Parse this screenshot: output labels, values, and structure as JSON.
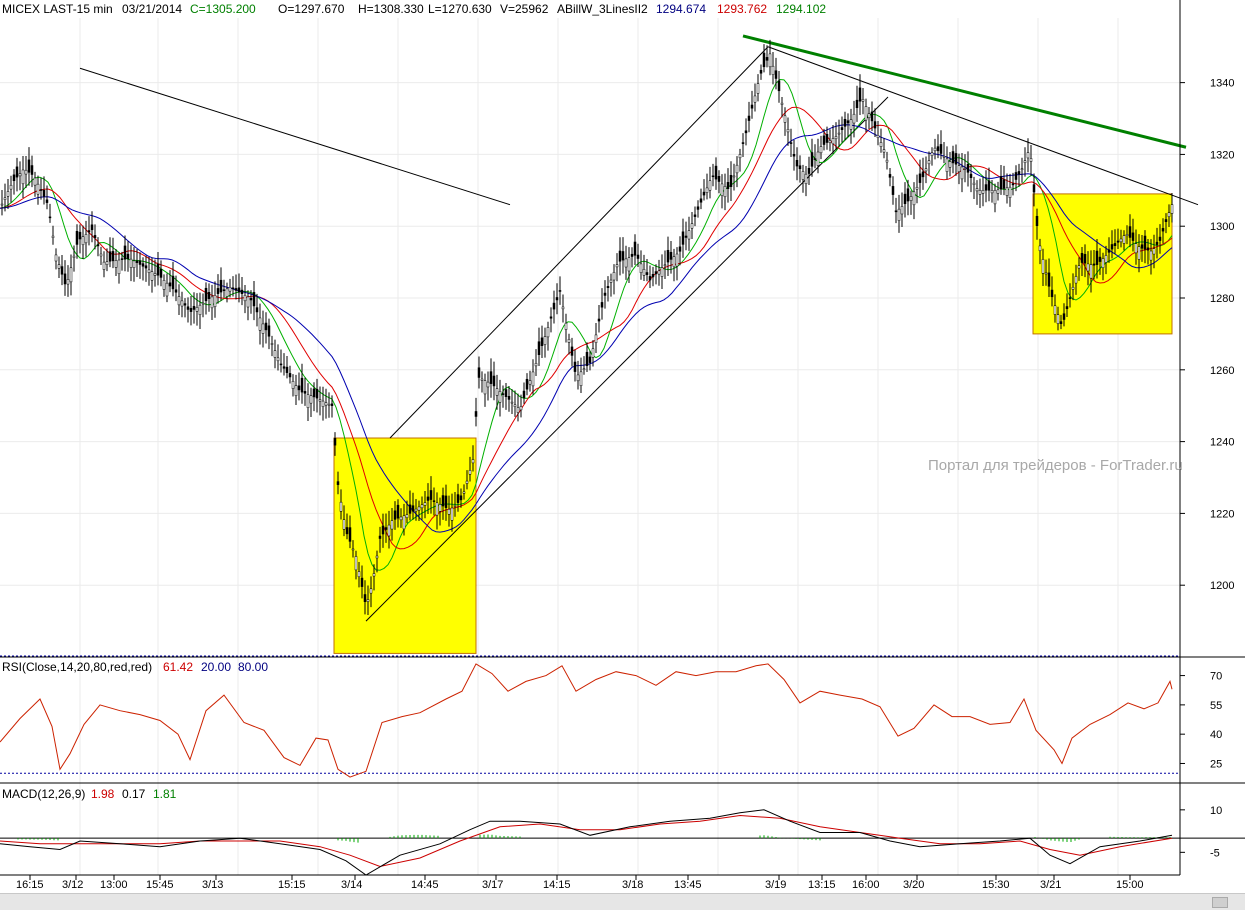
{
  "header": {
    "symbol": "MICEX LAST-15 min",
    "date": "03/21/2014",
    "close": "C=1305.200",
    "open": "O=1297.670",
    "high": "H=1308.330",
    "low": "L=1270.630",
    "volume": "V=25962",
    "indicator": "ABillW_3LinesII2",
    "ind_blue": "1294.674",
    "ind_red": "1293.762",
    "ind_green": "1294.102"
  },
  "watermark": "Портал для трейдеров - ForTrader.ru",
  "rsi_header": {
    "label": "RSI(Close,14,20,80,red,red)",
    "value": "61.42",
    "low": "20.00",
    "high": "80.00"
  },
  "macd_header": {
    "label": "MACD(12,26,9)",
    "macd": "1.98",
    "signal": "0.17",
    "hist": "1.81"
  },
  "colors": {
    "fast_ma": "#00b000",
    "mid_ma": "#e00000",
    "slow_ma": "#0000b0",
    "highlight": "#ffff00",
    "trend_green": "#008000",
    "rsi_line": "#cc2200",
    "macd_signal": "#cc0000",
    "macd_hist": "#00aa00"
  },
  "chart_data": [
    {
      "type": "candlestick",
      "title": "MICEX LAST-15 min",
      "y_ticks": [
        1200,
        1220,
        1240,
        1260,
        1280,
        1300,
        1320,
        1340
      ],
      "ylim": [
        1180,
        1358
      ],
      "x_ticks": [
        "16:15",
        "3/12",
        "13:00",
        "15:45",
        "3/13",
        "15:15",
        "3/14",
        "14:45",
        "3/17",
        "14:15",
        "3/18",
        "13:45",
        "3/19",
        "13:15",
        "16:00",
        "3/20",
        "15:30",
        "3/21",
        "15:00"
      ],
      "price_path": [
        [
          0,
          1305
        ],
        [
          12,
          1312
        ],
        [
          24,
          1316
        ],
        [
          34,
          1314
        ],
        [
          48,
          1306
        ],
        [
          56,
          1292
        ],
        [
          66,
          1283
        ],
        [
          78,
          1296
        ],
        [
          92,
          1299
        ],
        [
          104,
          1290
        ],
        [
          130,
          1291
        ],
        [
          160,
          1286
        ],
        [
          175,
          1282
        ],
        [
          190,
          1276
        ],
        [
          210,
          1280
        ],
        [
          230,
          1283
        ],
        [
          250,
          1280
        ],
        [
          268,
          1270
        ],
        [
          280,
          1262
        ],
        [
          300,
          1254
        ],
        [
          318,
          1252
        ],
        [
          332,
          1250
        ],
        [
          338,
          1228
        ],
        [
          346,
          1215
        ],
        [
          356,
          1208
        ],
        [
          366,
          1194
        ],
        [
          372,
          1200
        ],
        [
          380,
          1213
        ],
        [
          392,
          1218
        ],
        [
          410,
          1220
        ],
        [
          430,
          1224
        ],
        [
          450,
          1221
        ],
        [
          462,
          1224
        ],
        [
          474,
          1236
        ],
        [
          478,
          1258
        ],
        [
          492,
          1256
        ],
        [
          508,
          1252
        ],
        [
          520,
          1249
        ],
        [
          540,
          1265
        ],
        [
          560,
          1282
        ],
        [
          576,
          1258
        ],
        [
          590,
          1262
        ],
        [
          604,
          1280
        ],
        [
          618,
          1290
        ],
        [
          636,
          1292
        ],
        [
          650,
          1285
        ],
        [
          664,
          1289
        ],
        [
          680,
          1293
        ],
        [
          694,
          1302
        ],
        [
          712,
          1314
        ],
        [
          730,
          1310
        ],
        [
          746,
          1326
        ],
        [
          760,
          1342
        ],
        [
          770,
          1348
        ],
        [
          784,
          1332
        ],
        [
          796,
          1317
        ],
        [
          808,
          1314
        ],
        [
          820,
          1322
        ],
        [
          836,
          1325
        ],
        [
          852,
          1330
        ],
        [
          862,
          1336
        ],
        [
          874,
          1328
        ],
        [
          886,
          1320
        ],
        [
          896,
          1304
        ],
        [
          908,
          1307
        ],
        [
          922,
          1313
        ],
        [
          934,
          1322
        ],
        [
          950,
          1318
        ],
        [
          966,
          1316
        ],
        [
          978,
          1310
        ],
        [
          996,
          1310
        ],
        [
          1012,
          1311
        ],
        [
          1022,
          1316
        ],
        [
          1030,
          1322
        ],
        [
          1038,
          1297
        ],
        [
          1050,
          1282
        ],
        [
          1062,
          1272
        ],
        [
          1068,
          1278
        ],
        [
          1080,
          1290
        ],
        [
          1096,
          1289
        ],
        [
          1110,
          1293
        ],
        [
          1126,
          1298
        ],
        [
          1140,
          1294
        ],
        [
          1152,
          1293
        ],
        [
          1160,
          1296
        ],
        [
          1168,
          1303
        ],
        [
          1172,
          1306
        ]
      ],
      "moving_averages": [
        "green",
        "red",
        "blue"
      ],
      "highlight_boxes": [
        {
          "x_from": "3/14",
          "y_range": [
            1181,
            1241
          ]
        },
        {
          "x_from": "3/21",
          "y_range": [
            1270,
            1309
          ]
        }
      ]
    },
    {
      "type": "line",
      "title": "RSI(Close,14,20,80,red,red)",
      "y_ticks": [
        25,
        40,
        55,
        70
      ],
      "ylim": [
        15,
        79
      ],
      "guides": [
        20,
        80
      ],
      "values": [
        [
          0,
          36
        ],
        [
          20,
          48
        ],
        [
          40,
          58
        ],
        [
          52,
          44
        ],
        [
          60,
          22
        ],
        [
          70,
          30
        ],
        [
          84,
          45
        ],
        [
          100,
          55
        ],
        [
          120,
          52
        ],
        [
          140,
          50
        ],
        [
          160,
          47
        ],
        [
          178,
          40
        ],
        [
          190,
          27
        ],
        [
          206,
          52
        ],
        [
          224,
          60
        ],
        [
          244,
          46
        ],
        [
          264,
          42
        ],
        [
          284,
          28
        ],
        [
          300,
          24
        ],
        [
          316,
          38
        ],
        [
          328,
          37
        ],
        [
          338,
          22
        ],
        [
          350,
          18
        ],
        [
          366,
          21
        ],
        [
          382,
          46
        ],
        [
          402,
          49
        ],
        [
          420,
          51
        ],
        [
          446,
          58
        ],
        [
          462,
          62
        ],
        [
          476,
          76
        ],
        [
          492,
          71
        ],
        [
          508,
          62
        ],
        [
          526,
          67
        ],
        [
          546,
          70
        ],
        [
          562,
          75
        ],
        [
          576,
          62
        ],
        [
          596,
          68
        ],
        [
          616,
          72
        ],
        [
          636,
          70
        ],
        [
          656,
          65
        ],
        [
          676,
          72
        ],
        [
          696,
          70
        ],
        [
          716,
          72
        ],
        [
          736,
          72
        ],
        [
          756,
          75
        ],
        [
          768,
          76
        ],
        [
          784,
          68
        ],
        [
          800,
          56
        ],
        [
          820,
          62
        ],
        [
          840,
          60
        ],
        [
          862,
          58
        ],
        [
          880,
          54
        ],
        [
          898,
          39
        ],
        [
          914,
          43
        ],
        [
          934,
          55
        ],
        [
          952,
          49
        ],
        [
          970,
          49
        ],
        [
          990,
          45
        ],
        [
          1010,
          46
        ],
        [
          1024,
          58
        ],
        [
          1036,
          42
        ],
        [
          1054,
          32
        ],
        [
          1062,
          25
        ],
        [
          1072,
          38
        ],
        [
          1090,
          45
        ],
        [
          1110,
          50
        ],
        [
          1128,
          56
        ],
        [
          1144,
          53
        ],
        [
          1158,
          56
        ],
        [
          1170,
          67
        ],
        [
          1172,
          63
        ]
      ]
    },
    {
      "type": "line",
      "title": "MACD(12,26,9)",
      "y_ticks": [
        -5,
        10
      ],
      "ylim": [
        -13,
        17
      ],
      "zero_line": 0,
      "series": [
        {
          "name": "MACD",
          "values": [
            [
              0,
              -2
            ],
            [
              30,
              -3
            ],
            [
              60,
              -4
            ],
            [
              80,
              -1
            ],
            [
              120,
              -2
            ],
            [
              160,
              -3
            ],
            [
              200,
              -1
            ],
            [
              240,
              0
            ],
            [
              280,
              -2
            ],
            [
              320,
              -4
            ],
            [
              346,
              -8
            ],
            [
              366,
              -13
            ],
            [
              400,
              -6
            ],
            [
              440,
              -2
            ],
            [
              470,
              3
            ],
            [
              490,
              6
            ],
            [
              520,
              6
            ],
            [
              560,
              5
            ],
            [
              590,
              1
            ],
            [
              630,
              4
            ],
            [
              670,
              6
            ],
            [
              710,
              7
            ],
            [
              740,
              9
            ],
            [
              764,
              10
            ],
            [
              790,
              6
            ],
            [
              820,
              2
            ],
            [
              860,
              2
            ],
            [
              890,
              -1
            ],
            [
              920,
              -3
            ],
            [
              960,
              -2
            ],
            [
              1000,
              -1
            ],
            [
              1030,
              0
            ],
            [
              1050,
              -6
            ],
            [
              1070,
              -9
            ],
            [
              1100,
              -3
            ],
            [
              1140,
              -1
            ],
            [
              1172,
              1
            ]
          ]
        },
        {
          "name": "Signal",
          "values": [
            [
              0,
              -1
            ],
            [
              40,
              -2
            ],
            [
              80,
              -2
            ],
            [
              120,
              -2
            ],
            [
              160,
              -2
            ],
            [
              200,
              -1
            ],
            [
              240,
              -1
            ],
            [
              280,
              -1
            ],
            [
              320,
              -3
            ],
            [
              350,
              -6
            ],
            [
              380,
              -10
            ],
            [
              420,
              -7
            ],
            [
              460,
              -1
            ],
            [
              500,
              4
            ],
            [
              540,
              5
            ],
            [
              580,
              3
            ],
            [
              620,
              3
            ],
            [
              660,
              5
            ],
            [
              700,
              6
            ],
            [
              740,
              8
            ],
            [
              780,
              7
            ],
            [
              820,
              4
            ],
            [
              860,
              2
            ],
            [
              900,
              0
            ],
            [
              940,
              -2
            ],
            [
              980,
              -2
            ],
            [
              1020,
              -1
            ],
            [
              1050,
              -4
            ],
            [
              1080,
              -6
            ],
            [
              1120,
              -3
            ],
            [
              1172,
              0
            ]
          ]
        }
      ],
      "hist_ranges": [
        [
          18,
          60
        ],
        [
          338,
          360
        ],
        [
          390,
          440
        ],
        [
          480,
          520
        ],
        [
          760,
          820
        ],
        [
          1035,
          1080
        ],
        [
          1110,
          1172
        ]
      ]
    }
  ]
}
